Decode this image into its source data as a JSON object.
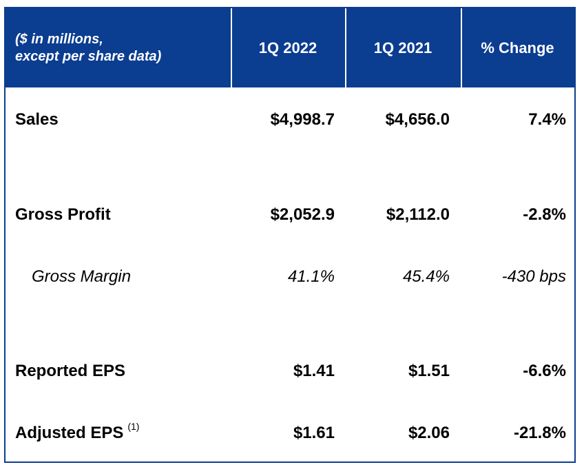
{
  "header": {
    "col0": "($ in millions,\nexcept per share data)",
    "col1": "1Q 2022",
    "col2": "1Q 2021",
    "col3": "% Change"
  },
  "rows": [
    {
      "label": "Sales",
      "q2022": "$4,998.7",
      "q2021": "$4,656.0",
      "change": "7.4%"
    },
    {
      "label": "Gross Profit",
      "q2022": "$2,052.9",
      "q2021": "$2,112.0",
      "change": "-2.8%"
    },
    {
      "label": "Gross Margin",
      "q2022": "41.1%",
      "q2021": "45.4%",
      "change": "-430 bps"
    },
    {
      "label": "Reported EPS",
      "q2022": "$1.41",
      "q2021": "$1.51",
      "change": "-6.6%"
    },
    {
      "label": "Adjusted EPS",
      "footnote": "(1)",
      "q2022": "$1.61",
      "q2021": "$2.06",
      "change": "-21.8%"
    }
  ],
  "colors": {
    "header_bg": "#0b3d91",
    "border": "#0b3d91"
  }
}
